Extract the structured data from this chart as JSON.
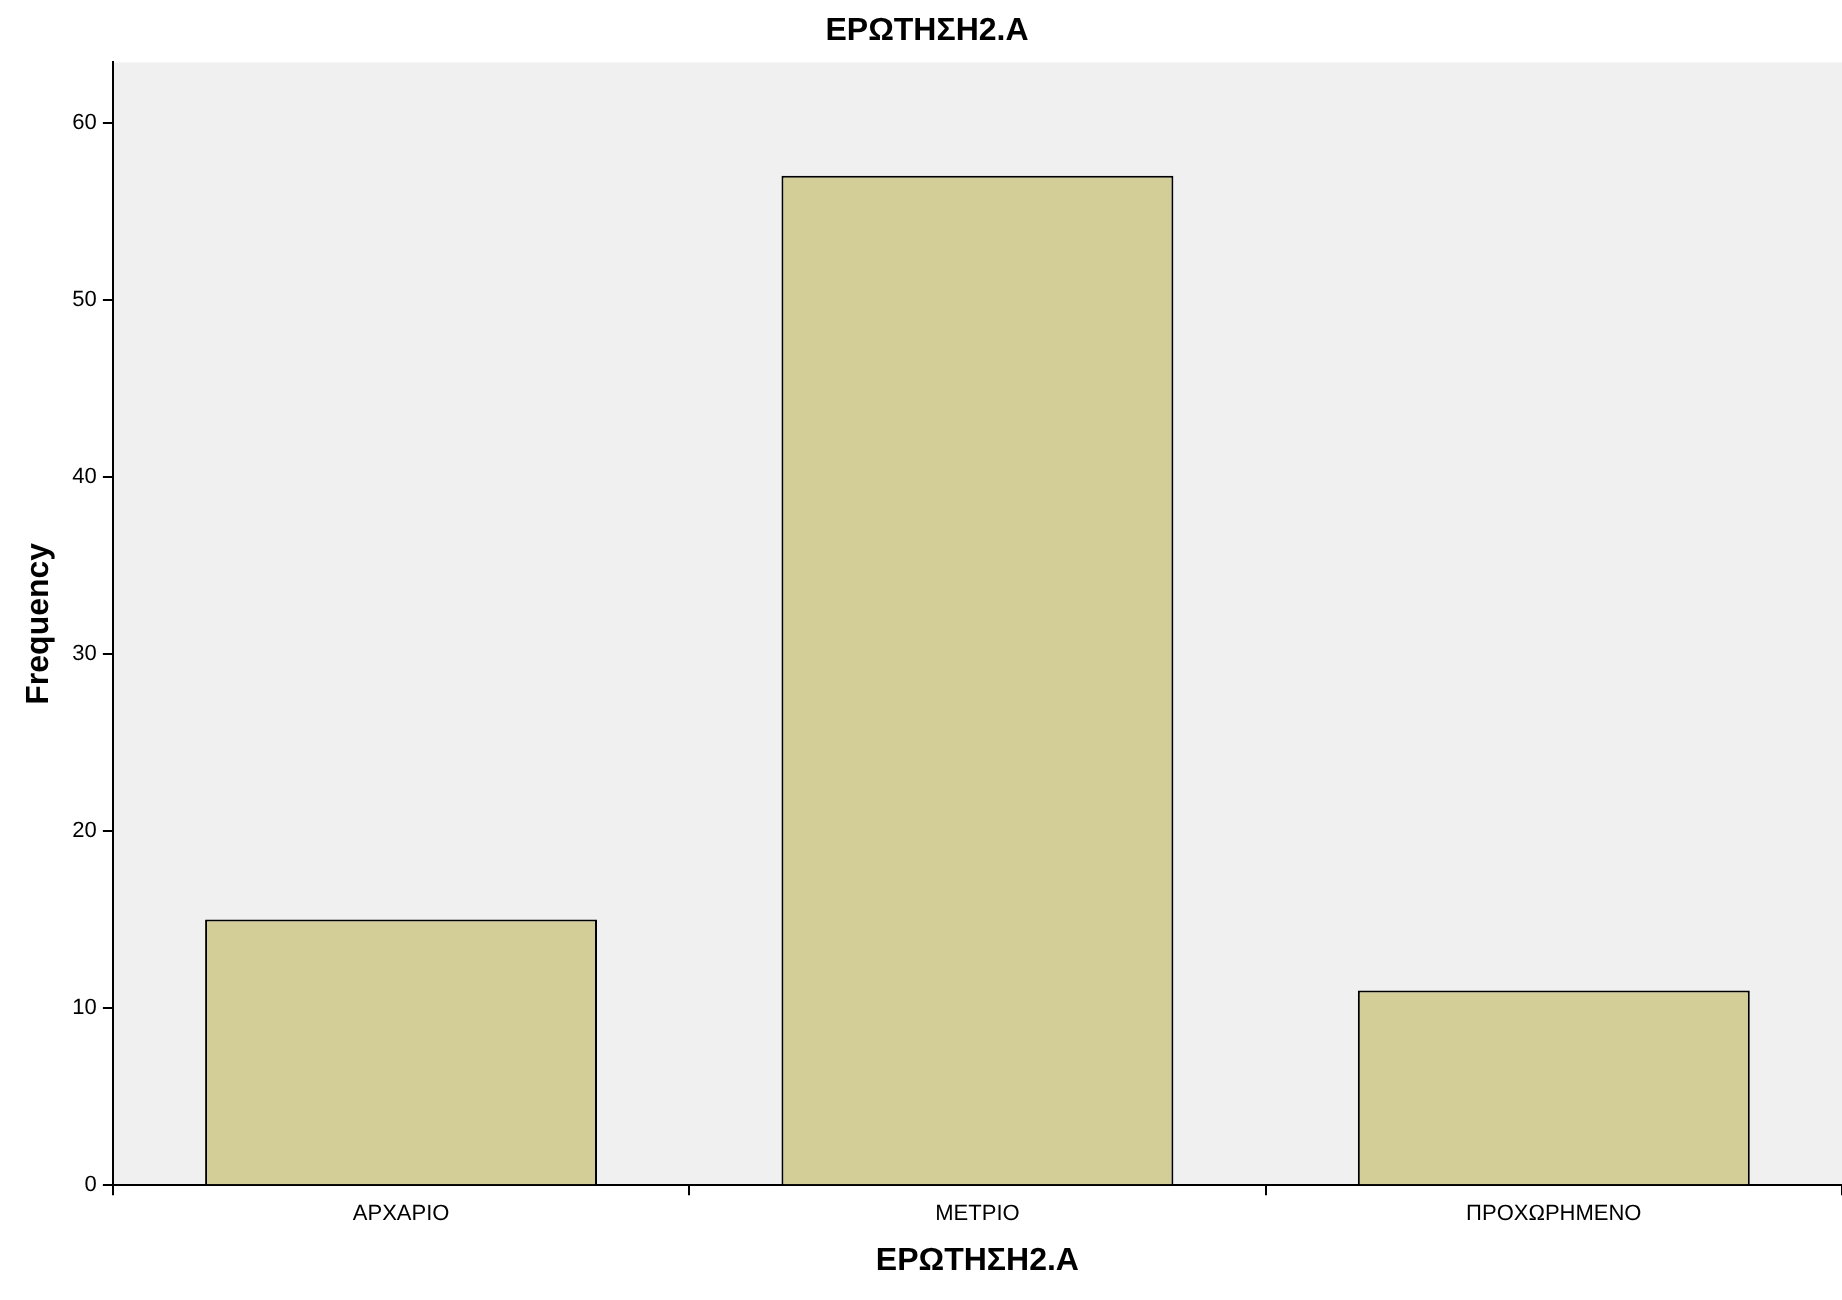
{
  "chart_data": {
    "type": "bar",
    "title": "ΕΡΩΤΗΣΗ2.Α",
    "xlabel": "ΕΡΩΤΗΣΗ2.Α",
    "ylabel": "Frequency",
    "categories": [
      "ΑΡΧΑΡΙΟ",
      "ΜΕΤΡΙΟ",
      "ΠΡΟΧΩΡΗΜΕΝΟ"
    ],
    "values": [
      15,
      57,
      11
    ],
    "color": "#d3ce97",
    "ylim": [
      0,
      63.4
    ],
    "yticks": [
      0,
      10,
      20,
      30,
      40,
      50,
      60
    ],
    "grid": false,
    "legend": false
  }
}
